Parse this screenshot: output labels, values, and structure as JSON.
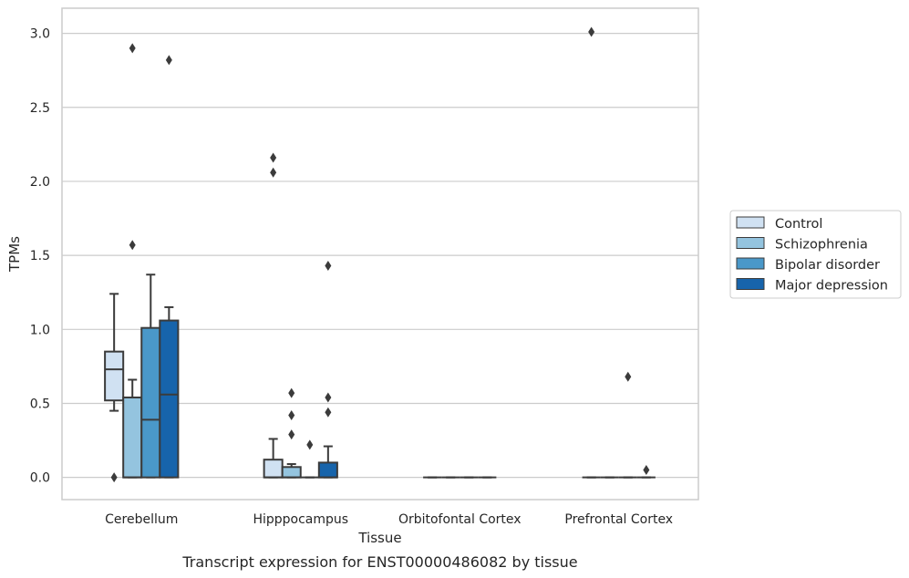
{
  "chart_data": {
    "type": "box",
    "xlabel": "Tissue",
    "ylabel": "TPMs",
    "caption": "Transcript expression for ENST00000486082 by tissue",
    "ylim": [
      -0.15,
      3.17
    ],
    "yticks": [
      0.0,
      0.5,
      1.0,
      1.5,
      2.0,
      2.5,
      3.0
    ],
    "ytick_labels": [
      "0.0",
      "0.5",
      "1.0",
      "1.5",
      "2.0",
      "2.5",
      "3.0"
    ],
    "grid": "horizontal",
    "legend_placement": "right",
    "categories": [
      "Cerebellum",
      "Hipppocampus",
      "Orbitofontal Cortex",
      "Prefrontal Cortex"
    ],
    "series": [
      {
        "name": "Control",
        "color": "#d0e1f2",
        "boxes": [
          {
            "whislo": 0.45,
            "q1": 0.52,
            "med": 0.73,
            "q3": 0.85,
            "whishi": 1.24,
            "fliers": [
              0.0
            ]
          },
          {
            "whislo": 0.0,
            "q1": 0.0,
            "med": 0.0,
            "q3": 0.12,
            "whishi": 0.26,
            "fliers": [
              2.06,
              2.16
            ]
          },
          {
            "whislo": 0.0,
            "q1": 0.0,
            "med": 0.0,
            "q3": 0.0,
            "whishi": 0.0,
            "fliers": []
          },
          {
            "whislo": 0.0,
            "q1": 0.0,
            "med": 0.0,
            "q3": 0.0,
            "whishi": 0.0,
            "fliers": [
              3.01
            ]
          }
        ]
      },
      {
        "name": "Schizophrenia",
        "color": "#94c4df",
        "boxes": [
          {
            "whislo": 0.0,
            "q1": 0.0,
            "med": 0.0,
            "q3": 0.54,
            "whishi": 0.66,
            "fliers": [
              1.57,
              2.9
            ]
          },
          {
            "whislo": 0.0,
            "q1": 0.0,
            "med": 0.0,
            "q3": 0.07,
            "whishi": 0.09,
            "fliers": [
              0.29,
              0.42,
              0.57
            ]
          },
          {
            "whislo": 0.0,
            "q1": 0.0,
            "med": 0.0,
            "q3": 0.0,
            "whishi": 0.0,
            "fliers": []
          },
          {
            "whislo": 0.0,
            "q1": 0.0,
            "med": 0.0,
            "q3": 0.0,
            "whishi": 0.0,
            "fliers": []
          }
        ]
      },
      {
        "name": "Bipolar disorder",
        "color": "#4a98c9",
        "boxes": [
          {
            "whislo": 0.0,
            "q1": 0.0,
            "med": 0.39,
            "q3": 1.01,
            "whishi": 1.37,
            "fliers": []
          },
          {
            "whislo": 0.0,
            "q1": 0.0,
            "med": 0.0,
            "q3": 0.0,
            "whishi": 0.0,
            "fliers": [
              0.22
            ]
          },
          {
            "whislo": 0.0,
            "q1": 0.0,
            "med": 0.0,
            "q3": 0.0,
            "whishi": 0.0,
            "fliers": []
          },
          {
            "whislo": 0.0,
            "q1": 0.0,
            "med": 0.0,
            "q3": 0.0,
            "whishi": 0.0,
            "fliers": [
              0.68
            ]
          }
        ]
      },
      {
        "name": "Major depression",
        "color": "#1764ab",
        "boxes": [
          {
            "whislo": 0.0,
            "q1": 0.0,
            "med": 0.56,
            "q3": 1.06,
            "whishi": 1.15,
            "fliers": [
              2.82
            ]
          },
          {
            "whislo": 0.0,
            "q1": 0.0,
            "med": 0.0,
            "q3": 0.1,
            "whishi": 0.21,
            "fliers": [
              0.44,
              0.54,
              1.43
            ]
          },
          {
            "whislo": 0.0,
            "q1": 0.0,
            "med": 0.0,
            "q3": 0.0,
            "whishi": 0.0,
            "fliers": []
          },
          {
            "whislo": 0.0,
            "q1": 0.0,
            "med": 0.0,
            "q3": 0.0,
            "whishi": 0.0,
            "fliers": [
              0.05
            ]
          }
        ]
      }
    ]
  }
}
